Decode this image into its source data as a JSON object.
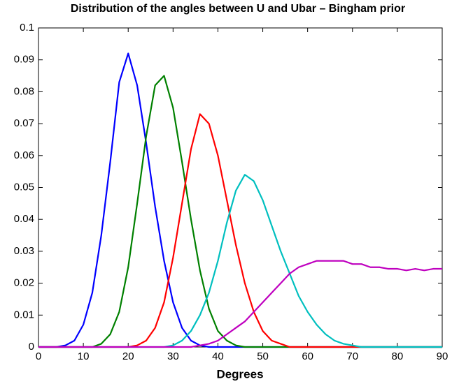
{
  "chart_data": {
    "type": "line",
    "title": "Distribution of the angles between U and Ubar – Bingham prior",
    "x_label": "Degrees",
    "x": [
      0,
      2,
      4,
      6,
      8,
      10,
      12,
      14,
      16,
      18,
      20,
      22,
      24,
      26,
      28,
      30,
      32,
      34,
      36,
      38,
      40,
      42,
      44,
      46,
      48,
      50,
      52,
      54,
      56,
      58,
      60,
      62,
      64,
      66,
      68,
      70,
      72,
      74,
      76,
      78,
      80,
      82,
      84,
      86,
      88,
      90
    ],
    "series": [
      {
        "color": "#0000ff",
        "values": [
          0,
          0,
          0,
          0.0005,
          0.002,
          0.007,
          0.017,
          0.035,
          0.058,
          0.083,
          0.092,
          0.082,
          0.064,
          0.044,
          0.027,
          0.014,
          0.006,
          0.002,
          0.0005,
          0,
          0,
          0,
          0,
          0,
          0,
          0,
          0,
          0,
          0,
          0,
          0,
          0,
          0,
          0,
          0,
          0,
          0,
          0,
          0,
          0,
          0,
          0,
          0,
          0,
          0,
          0
        ]
      },
      {
        "color": "#008000",
        "values": [
          0,
          0,
          0,
          0,
          0,
          0,
          0,
          0.001,
          0.004,
          0.011,
          0.025,
          0.045,
          0.066,
          0.082,
          0.085,
          0.075,
          0.058,
          0.04,
          0.024,
          0.012,
          0.005,
          0.002,
          0.0005,
          0,
          0,
          0,
          0,
          0,
          0,
          0,
          0,
          0,
          0,
          0,
          0,
          0,
          0,
          0,
          0,
          0,
          0,
          0,
          0,
          0,
          0,
          0
        ]
      },
      {
        "color": "#ff0000",
        "values": [
          0,
          0,
          0,
          0,
          0,
          0,
          0,
          0,
          0,
          0,
          0,
          0.0005,
          0.002,
          0.006,
          0.014,
          0.028,
          0.045,
          0.062,
          0.073,
          0.07,
          0.06,
          0.046,
          0.032,
          0.02,
          0.011,
          0.005,
          0.002,
          0.001,
          0,
          0,
          0,
          0,
          0,
          0,
          0,
          0,
          0,
          0,
          0,
          0,
          0,
          0,
          0,
          0,
          0,
          0
        ]
      },
      {
        "color": "#00bfbf",
        "values": [
          0,
          0,
          0,
          0,
          0,
          0,
          0,
          0,
          0,
          0,
          0,
          0,
          0,
          0,
          0,
          0.0005,
          0.002,
          0.005,
          0.01,
          0.017,
          0.027,
          0.039,
          0.049,
          0.054,
          0.052,
          0.046,
          0.038,
          0.03,
          0.023,
          0.016,
          0.011,
          0.007,
          0.004,
          0.002,
          0.001,
          0.0005,
          0,
          0,
          0,
          0,
          0,
          0,
          0,
          0,
          0,
          0
        ]
      },
      {
        "color": "#bf00bf",
        "values": [
          0,
          0,
          0,
          0,
          0,
          0,
          0,
          0,
          0,
          0,
          0,
          0,
          0,
          0,
          0,
          0,
          0,
          0,
          0.0005,
          0.001,
          0.002,
          0.004,
          0.006,
          0.008,
          0.011,
          0.014,
          0.017,
          0.02,
          0.023,
          0.025,
          0.026,
          0.027,
          0.027,
          0.027,
          0.027,
          0.026,
          0.026,
          0.025,
          0.025,
          0.0245,
          0.0245,
          0.024,
          0.0245,
          0.024,
          0.0245,
          0.0245
        ]
      }
    ],
    "xlim": [
      0,
      90
    ],
    "xticks": [
      0,
      10,
      20,
      30,
      40,
      50,
      60,
      70,
      80,
      90
    ],
    "ylim": [
      0,
      0.1
    ],
    "yticks": [
      0,
      0.01,
      0.02,
      0.03,
      0.04,
      0.05,
      0.06,
      0.07,
      0.08,
      0.09,
      0.1
    ],
    "grid": false
  }
}
